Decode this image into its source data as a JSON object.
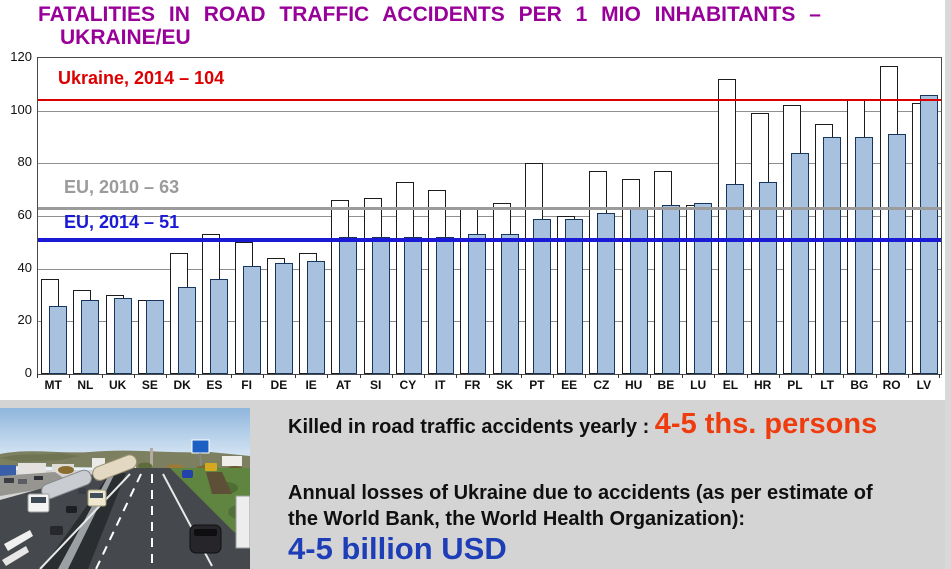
{
  "title": {
    "line1": "FATALITIES IN ROAD TRAFFIC ACCIDENTS PER 1 MIO INHABITANTS –",
    "line2": "UKRAINE/EU"
  },
  "chart_data": {
    "type": "bar",
    "title": "Fatalities in road traffic accidents per 1 mio inhabitants – Ukraine/EU",
    "categories": [
      "MT",
      "NL",
      "UK",
      "SE",
      "DK",
      "ES",
      "FI",
      "DE",
      "IE",
      "AT",
      "SI",
      "CY",
      "IT",
      "FR",
      "SK",
      "PT",
      "EE",
      "CZ",
      "HU",
      "BE",
      "LU",
      "EL",
      "HR",
      "PL",
      "LT",
      "BG",
      "RO",
      "LV"
    ],
    "series": [
      {
        "name": "2010",
        "style": "white",
        "values": [
          36,
          32,
          30,
          28,
          46,
          53,
          50,
          44,
          46,
          66,
          67,
          73,
          70,
          63,
          65,
          80,
          60,
          77,
          74,
          77,
          64,
          112,
          99,
          102,
          95,
          104,
          117,
          103
        ]
      },
      {
        "name": "2014",
        "style": "blue",
        "values": [
          26,
          28,
          29,
          28,
          33,
          36,
          41,
          42,
          43,
          52,
          52,
          52,
          52,
          53,
          53,
          59,
          59,
          61,
          63,
          64,
          65,
          72,
          73,
          84,
          90,
          90,
          91,
          106
        ]
      }
    ],
    "ylim": [
      0,
      120
    ],
    "y_ticks": [
      0,
      20,
      40,
      60,
      80,
      100,
      120
    ],
    "grid": true,
    "legend_position": "none",
    "ref_lines": [
      {
        "label": "Ukraine, 2014 – 104",
        "value": 104,
        "color": "#dd0000",
        "thickness": 2
      },
      {
        "label": "EU, 2010 – 63",
        "value": 63,
        "color": "#9b9b9b",
        "thickness": 3
      },
      {
        "label": "EU, 2014 – 51",
        "value": 51,
        "color": "#1a1ad6",
        "thickness": 4
      }
    ],
    "bar_fill": "#a8c1de",
    "bar_border": "#17365d"
  },
  "panel": {
    "killed_label": "Killed in road traffic accidents yearly :",
    "killed_value": "4-5 ths. persons",
    "losses_line1": "Annual losses of Ukraine due to accidents (as per estimate of",
    "losses_line2": "the World Bank, the World Health Organization):",
    "losses_value": "4-5 billion USD",
    "accent_red": "#ee3c0f",
    "accent_blue": "#1e3eb8"
  },
  "photo": {
    "description": "highway traffic photo with trucks and cars"
  }
}
